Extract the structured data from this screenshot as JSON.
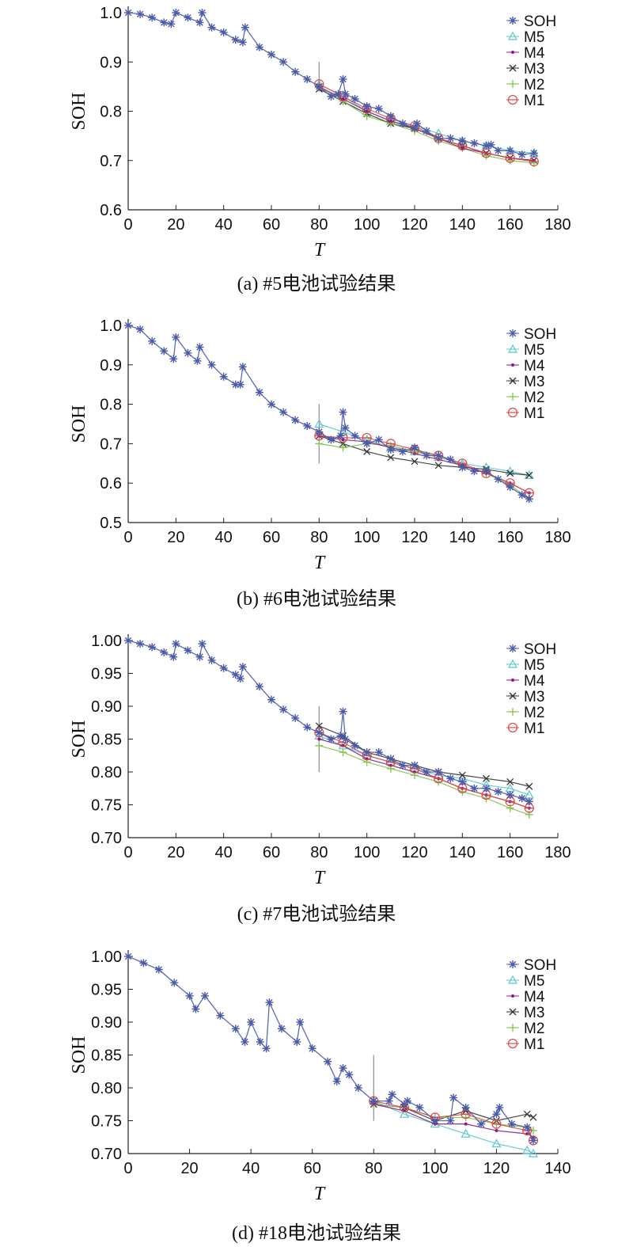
{
  "colors": {
    "SOH": "#4b5aa8",
    "M5": "#5cc6cc",
    "M4": "#8b1a8b",
    "M3": "#333333",
    "M2": "#7fc24a",
    "M1": "#d84a4a",
    "split": "#8a8a9a"
  },
  "legend": [
    "SOH",
    "M5",
    "M4",
    "M3",
    "M2",
    "M1"
  ],
  "chart_data": [
    {
      "type": "line",
      "caption": "(a) #5电池试验结果",
      "xlabel": "T",
      "ylabel": "SOH",
      "xlim": [
        0,
        180
      ],
      "ylim": [
        0.6,
        1.0
      ],
      "xticks": [
        0,
        20,
        40,
        60,
        80,
        100,
        120,
        140,
        160,
        180
      ],
      "yticks": [
        0.6,
        0.7,
        0.8,
        0.9,
        1.0
      ],
      "ytick_labels": [
        "0.6",
        "0.7",
        "0.8",
        "0.9",
        "1.0"
      ],
      "split_x": 80,
      "split_range": [
        0.84,
        0.9
      ],
      "series": [
        {
          "name": "SOH",
          "x": [
            0,
            5,
            10,
            15,
            18,
            20,
            25,
            30,
            31,
            35,
            40,
            45,
            48,
            49,
            55,
            60,
            65,
            70,
            75,
            80,
            85,
            88,
            90,
            91,
            95,
            100,
            105,
            110,
            115,
            120,
            121,
            125,
            130,
            135,
            140,
            145,
            150,
            152,
            155,
            160,
            165,
            170
          ],
          "y": [
            1.0,
            0.997,
            0.99,
            0.98,
            0.977,
            1.0,
            0.99,
            0.98,
            1.0,
            0.97,
            0.96,
            0.945,
            0.94,
            0.97,
            0.93,
            0.915,
            0.9,
            0.88,
            0.865,
            0.85,
            0.83,
            0.835,
            0.865,
            0.835,
            0.825,
            0.81,
            0.805,
            0.79,
            0.775,
            0.765,
            0.775,
            0.76,
            0.745,
            0.745,
            0.74,
            0.735,
            0.73,
            0.732,
            0.72,
            0.72,
            0.712,
            0.715
          ]
        },
        {
          "name": "M5",
          "x": [
            80,
            90,
            100,
            110,
            120,
            130,
            140,
            150,
            160,
            170
          ],
          "y": [
            0.855,
            0.83,
            0.8,
            0.78,
            0.77,
            0.755,
            0.74,
            0.73,
            0.72,
            0.715
          ]
        },
        {
          "name": "M4",
          "x": [
            80,
            90,
            100,
            110,
            120,
            130,
            140,
            150,
            160,
            170
          ],
          "y": [
            0.85,
            0.825,
            0.8,
            0.78,
            0.765,
            0.745,
            0.725,
            0.715,
            0.705,
            0.7
          ]
        },
        {
          "name": "M3",
          "x": [
            80,
            90,
            100,
            110,
            120,
            130,
            140,
            150,
            160,
            170
          ],
          "y": [
            0.845,
            0.82,
            0.795,
            0.775,
            0.765,
            0.745,
            0.73,
            0.715,
            0.705,
            0.7
          ]
        },
        {
          "name": "M2",
          "x": [
            80,
            90,
            100,
            110,
            120,
            130,
            140,
            150,
            160,
            170
          ],
          "y": [
            0.85,
            0.82,
            0.79,
            0.775,
            0.76,
            0.74,
            0.725,
            0.71,
            0.7,
            0.695
          ]
        },
        {
          "name": "M1",
          "x": [
            80,
            90,
            100,
            110,
            120,
            130,
            140,
            150,
            160,
            170
          ],
          "y": [
            0.855,
            0.83,
            0.805,
            0.785,
            0.77,
            0.745,
            0.73,
            0.715,
            0.705,
            0.698
          ]
        }
      ]
    },
    {
      "type": "line",
      "caption": "(b) #6电池试验结果",
      "xlabel": "T",
      "ylabel": "SOH",
      "xlim": [
        0,
        180
      ],
      "ylim": [
        0.5,
        1.0
      ],
      "xticks": [
        0,
        20,
        40,
        60,
        80,
        100,
        120,
        140,
        160,
        180
      ],
      "yticks": [
        0.5,
        0.6,
        0.7,
        0.8,
        0.9,
        1.0
      ],
      "ytick_labels": [
        "0.5",
        "0.6",
        "0.7",
        "0.8",
        "0.9",
        "1.0"
      ],
      "split_x": 80,
      "split_range": [
        0.65,
        0.8
      ],
      "series": [
        {
          "name": "SOH",
          "x": [
            0,
            5,
            10,
            15,
            19,
            20,
            25,
            29,
            30,
            35,
            40,
            45,
            47,
            48,
            55,
            60,
            65,
            70,
            75,
            80,
            85,
            89,
            90,
            91,
            95,
            100,
            105,
            110,
            115,
            120,
            125,
            130,
            135,
            140,
            145,
            150,
            155,
            160,
            165,
            168
          ],
          "y": [
            1.0,
            0.99,
            0.96,
            0.935,
            0.915,
            0.97,
            0.93,
            0.91,
            0.945,
            0.9,
            0.87,
            0.85,
            0.85,
            0.895,
            0.83,
            0.8,
            0.78,
            0.76,
            0.745,
            0.73,
            0.71,
            0.72,
            0.78,
            0.74,
            0.72,
            0.7,
            0.71,
            0.685,
            0.68,
            0.69,
            0.67,
            0.67,
            0.66,
            0.64,
            0.63,
            0.63,
            0.61,
            0.59,
            0.57,
            0.56
          ]
        },
        {
          "name": "M5",
          "x": [
            80,
            90,
            100,
            110,
            120,
            130,
            140,
            150,
            160,
            168
          ],
          "y": [
            0.75,
            0.73,
            0.71,
            0.69,
            0.68,
            0.665,
            0.65,
            0.64,
            0.63,
            0.62
          ]
        },
        {
          "name": "M4",
          "x": [
            80,
            90,
            100,
            110,
            120,
            130,
            140,
            150,
            160,
            168
          ],
          "y": [
            0.72,
            0.71,
            0.705,
            0.69,
            0.675,
            0.66,
            0.645,
            0.625,
            0.6,
            0.575
          ]
        },
        {
          "name": "M3",
          "x": [
            80,
            90,
            100,
            110,
            120,
            130,
            140,
            150,
            160,
            168
          ],
          "y": [
            0.72,
            0.7,
            0.68,
            0.665,
            0.655,
            0.645,
            0.64,
            0.635,
            0.625,
            0.62
          ]
        },
        {
          "name": "M2",
          "x": [
            80,
            90,
            100,
            110,
            120,
            130,
            140,
            150,
            160,
            168
          ],
          "y": [
            0.7,
            0.69,
            0.7,
            0.695,
            0.68,
            0.67,
            0.645,
            0.625,
            0.595,
            0.56
          ]
        },
        {
          "name": "M1",
          "x": [
            80,
            90,
            100,
            110,
            120,
            130,
            140,
            150,
            160,
            168
          ],
          "y": [
            0.72,
            0.715,
            0.715,
            0.7,
            0.685,
            0.67,
            0.65,
            0.625,
            0.6,
            0.575
          ]
        }
      ]
    },
    {
      "type": "line",
      "caption": "(c) #7电池试验结果",
      "xlabel": "T",
      "ylabel": "SOH",
      "xlim": [
        0,
        180
      ],
      "ylim": [
        0.7,
        1.0
      ],
      "xticks": [
        0,
        20,
        40,
        60,
        80,
        100,
        120,
        140,
        160,
        180
      ],
      "yticks": [
        0.7,
        0.75,
        0.8,
        0.85,
        0.9,
        0.95,
        1.0
      ],
      "ytick_labels": [
        "0.70",
        "0.75",
        "0.80",
        "0.85",
        "0.90",
        "0.95",
        "1.00"
      ],
      "split_x": 80,
      "split_range": [
        0.8,
        0.9
      ],
      "series": [
        {
          "name": "SOH",
          "x": [
            0,
            5,
            10,
            15,
            19,
            20,
            25,
            30,
            31,
            35,
            40,
            45,
            47,
            48,
            55,
            60,
            65,
            70,
            75,
            80,
            85,
            89,
            90,
            91,
            95,
            100,
            105,
            110,
            115,
            120,
            125,
            130,
            135,
            140,
            145,
            150,
            155,
            160,
            165,
            168
          ],
          "y": [
            1.0,
            0.995,
            0.99,
            0.982,
            0.975,
            0.995,
            0.985,
            0.975,
            0.995,
            0.97,
            0.958,
            0.948,
            0.942,
            0.96,
            0.93,
            0.91,
            0.895,
            0.882,
            0.868,
            0.86,
            0.85,
            0.855,
            0.892,
            0.85,
            0.84,
            0.83,
            0.83,
            0.82,
            0.81,
            0.81,
            0.8,
            0.8,
            0.79,
            0.785,
            0.775,
            0.775,
            0.77,
            0.765,
            0.76,
            0.755
          ]
        },
        {
          "name": "M5",
          "x": [
            80,
            90,
            100,
            110,
            120,
            130,
            140,
            150,
            160,
            168
          ],
          "y": [
            0.855,
            0.84,
            0.825,
            0.815,
            0.805,
            0.795,
            0.79,
            0.78,
            0.775,
            0.765
          ]
        },
        {
          "name": "M4",
          "x": [
            80,
            90,
            100,
            110,
            120,
            130,
            140,
            150,
            160,
            168
          ],
          "y": [
            0.85,
            0.84,
            0.82,
            0.81,
            0.8,
            0.79,
            0.775,
            0.765,
            0.755,
            0.745
          ]
        },
        {
          "name": "M3",
          "x": [
            80,
            90,
            100,
            110,
            120,
            130,
            140,
            150,
            160,
            168
          ],
          "y": [
            0.87,
            0.855,
            0.83,
            0.82,
            0.81,
            0.8,
            0.795,
            0.79,
            0.785,
            0.778
          ]
        },
        {
          "name": "M2",
          "x": [
            80,
            90,
            100,
            110,
            120,
            130,
            140,
            150,
            160,
            168
          ],
          "y": [
            0.84,
            0.83,
            0.815,
            0.805,
            0.795,
            0.785,
            0.77,
            0.76,
            0.745,
            0.735
          ]
        },
        {
          "name": "M1",
          "x": [
            80,
            90,
            100,
            110,
            120,
            130,
            140,
            150,
            160,
            168
          ],
          "y": [
            0.86,
            0.845,
            0.825,
            0.815,
            0.805,
            0.79,
            0.775,
            0.765,
            0.755,
            0.745
          ]
        }
      ]
    },
    {
      "type": "line",
      "caption": "(d) #18电池试验结果",
      "xlabel": "T",
      "ylabel": "SOH",
      "xlim": [
        0,
        140
      ],
      "ylim": [
        0.7,
        1.0
      ],
      "xticks": [
        0,
        20,
        40,
        60,
        80,
        100,
        120,
        140
      ],
      "yticks": [
        0.7,
        0.75,
        0.8,
        0.85,
        0.9,
        0.95,
        1.0
      ],
      "ytick_labels": [
        "0.70",
        "0.75",
        "0.80",
        "0.85",
        "0.90",
        "0.95",
        "1.00"
      ],
      "split_x": 80,
      "split_range": [
        0.75,
        0.85
      ],
      "series": [
        {
          "name": "SOH",
          "x": [
            0,
            5,
            10,
            15,
            20,
            22,
            25,
            30,
            35,
            38,
            40,
            43,
            45,
            46,
            50,
            55,
            56,
            60,
            65,
            68,
            70,
            72,
            75,
            80,
            85,
            86,
            90,
            91,
            95,
            100,
            105,
            106,
            110,
            115,
            120,
            121,
            125,
            130,
            132
          ],
          "y": [
            1.0,
            0.99,
            0.98,
            0.96,
            0.94,
            0.92,
            0.94,
            0.91,
            0.89,
            0.87,
            0.9,
            0.87,
            0.86,
            0.93,
            0.89,
            0.87,
            0.9,
            0.86,
            0.84,
            0.81,
            0.83,
            0.82,
            0.8,
            0.78,
            0.78,
            0.79,
            0.775,
            0.78,
            0.77,
            0.75,
            0.75,
            0.785,
            0.77,
            0.745,
            0.76,
            0.77,
            0.745,
            0.74,
            0.72
          ]
        },
        {
          "name": "M5",
          "x": [
            80,
            90,
            100,
            110,
            120,
            130,
            132
          ],
          "y": [
            0.78,
            0.76,
            0.745,
            0.73,
            0.715,
            0.705,
            0.7
          ]
        },
        {
          "name": "M4",
          "x": [
            80,
            90,
            100,
            110,
            120,
            130,
            132
          ],
          "y": [
            0.775,
            0.765,
            0.745,
            0.745,
            0.735,
            0.73,
            0.725
          ]
        },
        {
          "name": "M3",
          "x": [
            80,
            90,
            100,
            110,
            120,
            130,
            132
          ],
          "y": [
            0.775,
            0.77,
            0.75,
            0.765,
            0.75,
            0.76,
            0.755
          ]
        },
        {
          "name": "M2",
          "x": [
            80,
            90,
            100,
            110,
            120,
            130,
            132
          ],
          "y": [
            0.775,
            0.77,
            0.755,
            0.755,
            0.745,
            0.74,
            0.735
          ]
        },
        {
          "name": "M1",
          "x": [
            80,
            90,
            100,
            110,
            120,
            130,
            132
          ],
          "y": [
            0.78,
            0.77,
            0.755,
            0.76,
            0.745,
            0.735,
            0.72
          ]
        }
      ]
    }
  ]
}
